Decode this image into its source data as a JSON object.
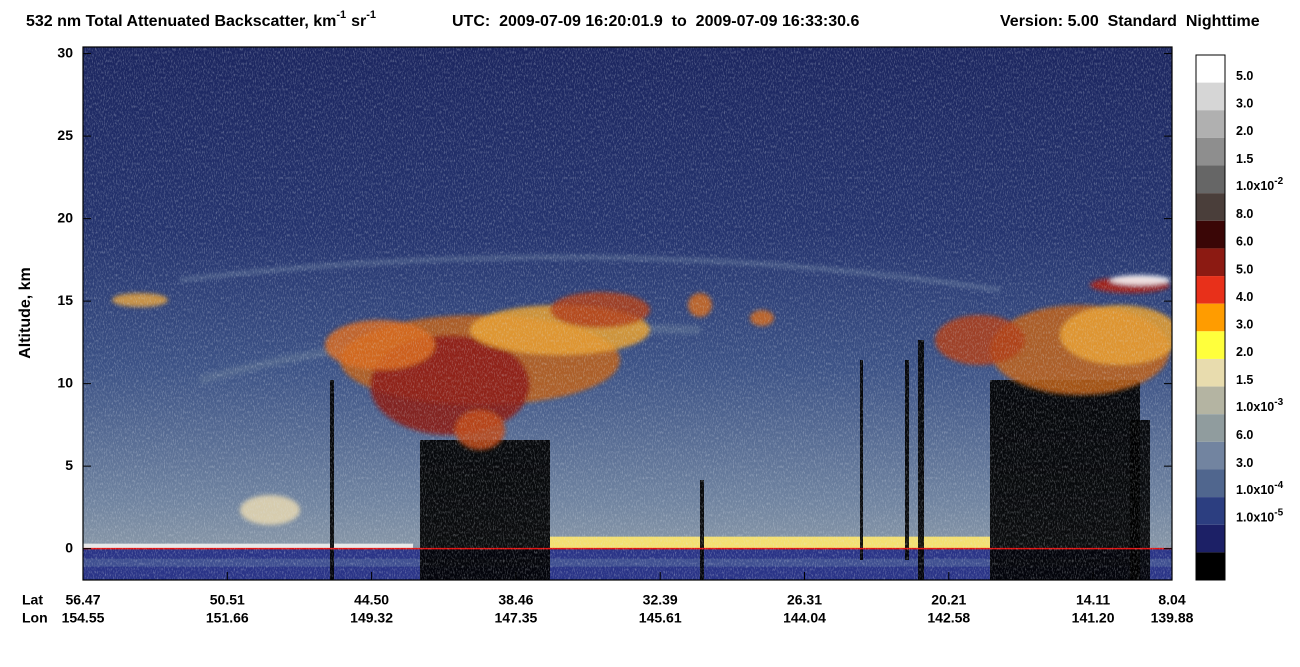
{
  "chart_data": {
    "type": "curtain",
    "title_segments": [
      "532 nm Total Attenuated Backscatter, km",
      "-1",
      "sr",
      "-1"
    ],
    "utc": "UTC:  2009-07-09 16:20:01.9  to  2009-07-09 16:33:30.6",
    "version": "Version: 5.00  Standard  Nighttime",
    "ylabel": "Altitude, km",
    "ylim": [
      -1.9,
      30.4
    ],
    "yticks": [
      0,
      5,
      10,
      15,
      20,
      25,
      30
    ],
    "x_row_labels": [
      "Lat",
      "Lon"
    ],
    "lat_ticks": [
      56.47,
      50.51,
      {
        "value": 44.5,
        "label": "44.50"
      },
      38.46,
      32.39,
      26.31,
      20.21,
      14.11,
      8.04
    ],
    "lon_ticks": [
      154.55,
      151.66,
      149.32,
      147.35,
      145.61,
      144.04,
      142.58,
      {
        "value": 141.2,
        "label": "141.20"
      },
      139.88
    ],
    "colorbar": {
      "colors": [
        "#ffffff",
        "#d6d6d6",
        "#b0b0b0",
        "#8e8e8e",
        "#666666",
        "#4a3e3a",
        "#3a0606",
        "#8c1a12",
        "#e8301a",
        "#ff9c00",
        "#ffff3c",
        "#e8dcae",
        "#b4b4a2",
        "#909c9e",
        "#7284a0",
        "#50668e",
        "#2c3e80",
        "#1c2066",
        "#000000"
      ],
      "labels": [
        "5.0",
        "3.0",
        "2.0",
        "1.5",
        {
          "base": "1.0x10",
          "exp": "-2"
        },
        "8.0",
        "6.0",
        "5.0",
        "4.0",
        "3.0",
        "2.0",
        "1.5",
        {
          "base": "1.0x10",
          "exp": "-3"
        },
        "6.0",
        "3.0",
        {
          "base": "1.0x10",
          "exp": "-4"
        },
        {
          "base": "1.0x10",
          "exp": "-5"
        }
      ]
    }
  }
}
